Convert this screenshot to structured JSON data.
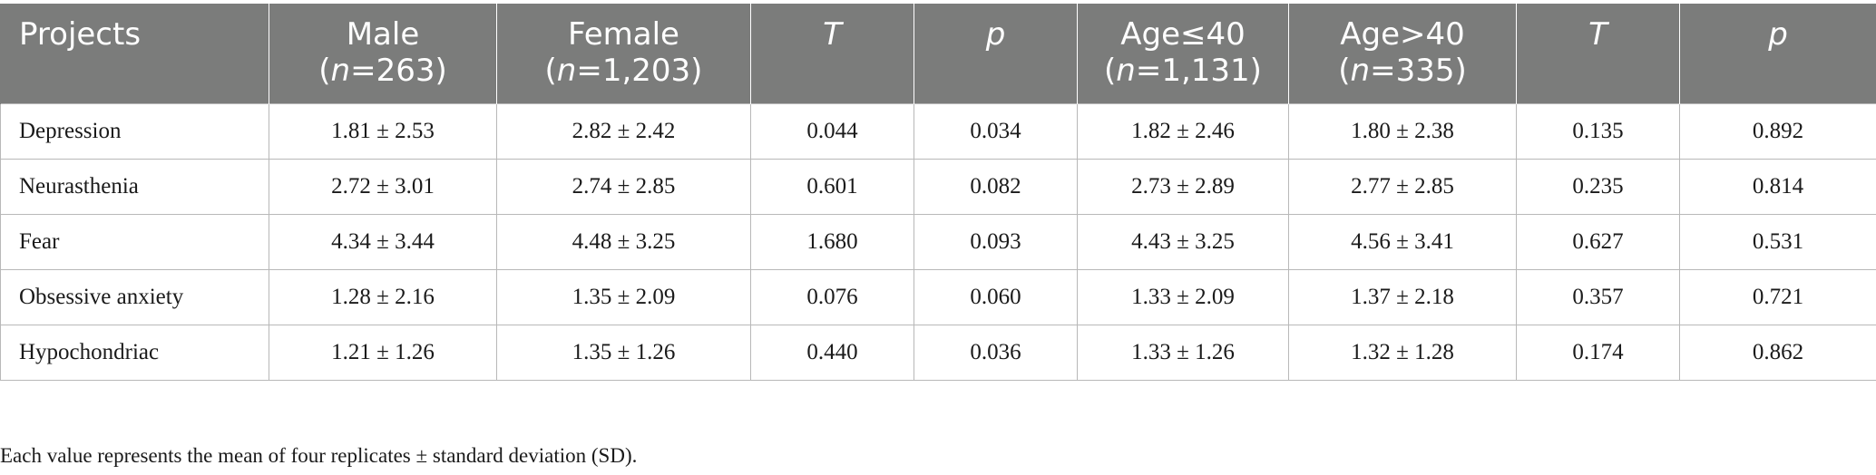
{
  "table": {
    "headers": {
      "projects": "Projects",
      "male": "Male",
      "male_n_label": "n",
      "male_n_value": "=263)",
      "female": "Female",
      "female_n_label": "n",
      "female_n_value": "=1,203)",
      "t1": "T",
      "p1": "p",
      "age_le40": "Age≤40",
      "age_le40_n_label": "n",
      "age_le40_n_value": "=1,131)",
      "age_gt40": "Age>40",
      "age_gt40_n_label": "n",
      "age_gt40_n_value": "=335)",
      "t2": "T",
      "p2": "p",
      "open_paren": "("
    },
    "rows": [
      {
        "project": "Depression",
        "male": "1.81 ± 2.53",
        "female": "2.82 ± 2.42",
        "t1": "0.044",
        "p1": "0.034",
        "age_le40": "1.82 ± 2.46",
        "age_gt40": "1.80 ± 2.38",
        "t2": "0.135",
        "p2": "0.892"
      },
      {
        "project": "Neurasthenia",
        "male": "2.72 ± 3.01",
        "female": "2.74 ± 2.85",
        "t1": "0.601",
        "p1": "0.082",
        "age_le40": "2.73 ± 2.89",
        "age_gt40": "2.77 ± 2.85",
        "t2": "0.235",
        "p2": "0.814"
      },
      {
        "project": "Fear",
        "male": "4.34 ± 3.44",
        "female": "4.48 ± 3.25",
        "t1": "1.680",
        "p1": "0.093",
        "age_le40": "4.43 ± 3.25",
        "age_gt40": "4.56 ± 3.41",
        "t2": "0.627",
        "p2": "0.531"
      },
      {
        "project": "Obsessive anxiety",
        "male": "1.28 ± 2.16",
        "female": "1.35 ± 2.09",
        "t1": "0.076",
        "p1": "0.060",
        "age_le40": "1.33 ± 2.09",
        "age_gt40": "1.37 ± 2.18",
        "t2": "0.357",
        "p2": "0.721"
      },
      {
        "project": "Hypochondriac",
        "male": "1.21 ± 1.26",
        "female": "1.35 ± 1.26",
        "t1": "0.440",
        "p1": "0.036",
        "age_le40": "1.33 ± 1.26",
        "age_gt40": "1.32 ± 1.28",
        "t2": "0.174",
        "p2": "0.862"
      }
    ]
  },
  "footnote": "Each value represents the mean of four replicates ± standard deviation (SD)."
}
